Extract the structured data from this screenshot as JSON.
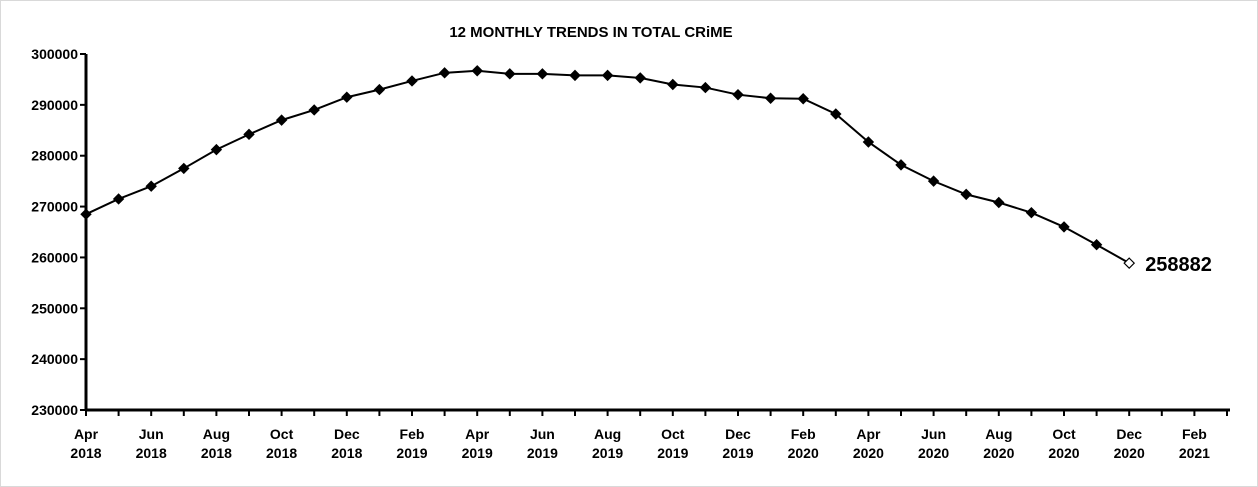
{
  "chart_data": {
    "type": "line",
    "title": "12 MONTHLY TRENDS IN TOTAL CRiME",
    "xlabel": "",
    "ylabel": "",
    "ylim": [
      230000,
      300000
    ],
    "yticks": [
      "230000",
      "240000",
      "250000",
      "260000",
      "270000",
      "280000",
      "290000",
      "300000"
    ],
    "xlim": [
      "2018-04",
      "2021-03"
    ],
    "xtick_labels": [
      {
        "month": "Apr",
        "year": "2018"
      },
      {
        "month": "Jun",
        "year": "2018"
      },
      {
        "month": "Aug",
        "year": "2018"
      },
      {
        "month": "Oct",
        "year": "2018"
      },
      {
        "month": "Dec",
        "year": "2018"
      },
      {
        "month": "Feb",
        "year": "2019"
      },
      {
        "month": "Apr",
        "year": "2019"
      },
      {
        "month": "Jun",
        "year": "2019"
      },
      {
        "month": "Aug",
        "year": "2019"
      },
      {
        "month": "Oct",
        "year": "2019"
      },
      {
        "month": "Dec",
        "year": "2019"
      },
      {
        "month": "Feb",
        "year": "2020"
      },
      {
        "month": "Apr",
        "year": "2020"
      },
      {
        "month": "Jun",
        "year": "2020"
      },
      {
        "month": "Aug",
        "year": "2020"
      },
      {
        "month": "Oct",
        "year": "2020"
      },
      {
        "month": "Dec",
        "year": "2020"
      },
      {
        "month": "Feb",
        "year": "2021"
      }
    ],
    "grid": false,
    "legend": "none",
    "series": [
      {
        "x": [
          "2018-04",
          "2018-05",
          "2018-06",
          "2018-07",
          "2018-08",
          "2018-09",
          "2018-10",
          "2018-11",
          "2018-12",
          "2019-01",
          "2019-02",
          "2019-03",
          "2019-04",
          "2019-05",
          "2019-06",
          "2019-07",
          "2019-08",
          "2019-09",
          "2019-10",
          "2019-11",
          "2019-12",
          "2020-01",
          "2020-02",
          "2020-03",
          "2020-04",
          "2020-05",
          "2020-06",
          "2020-07",
          "2020-08",
          "2020-09",
          "2020-10",
          "2020-11",
          "2020-12"
        ],
        "values": [
          268500,
          271500,
          274000,
          277500,
          281200,
          284200,
          287000,
          289000,
          291500,
          293000,
          294700,
          296300,
          296700,
          296100,
          296100,
          295800,
          295800,
          295300,
          294000,
          293400,
          292000,
          291300,
          291200,
          288200,
          282700,
          278200,
          275000,
          272400,
          270800,
          268800,
          266000,
          262500,
          258882
        ],
        "color": "#000000"
      }
    ],
    "last_point_marker": "hollow-diamond",
    "annotations": [
      {
        "x": "2020-12",
        "text": "258882"
      }
    ]
  }
}
